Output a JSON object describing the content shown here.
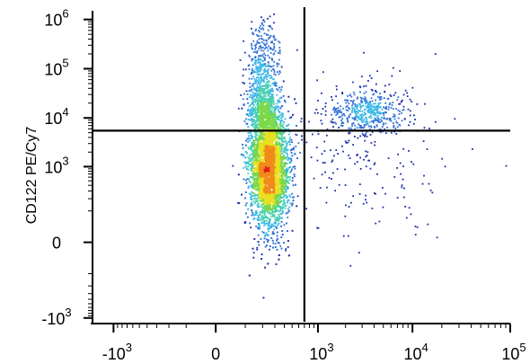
{
  "chart_data": {
    "type": "scatter",
    "subtype": "flow-cytometry-density",
    "title": "",
    "xlabel": "",
    "ylabel": "CD122 PE/Cy7",
    "x_axis": {
      "scale": "biexponential",
      "tick_labels": [
        {
          "value": -1000,
          "base": "-10",
          "exp": "3"
        },
        {
          "value": 0,
          "base": "0",
          "exp": ""
        },
        {
          "value": 1000,
          "base": "10",
          "exp": "3"
        },
        {
          "value": 10000,
          "base": "10",
          "exp": "4"
        },
        {
          "value": 100000,
          "base": "10",
          "exp": "5"
        }
      ],
      "range": [
        -1700,
        100000
      ]
    },
    "y_axis": {
      "scale": "biexponential",
      "tick_labels": [
        {
          "value": -1000,
          "base": "-10",
          "exp": "3"
        },
        {
          "value": 0,
          "base": "0",
          "exp": ""
        },
        {
          "value": 1000,
          "base": "10",
          "exp": "3"
        },
        {
          "value": 10000,
          "base": "10",
          "exp": "4"
        },
        {
          "value": 100000,
          "base": "10",
          "exp": "5"
        },
        {
          "value": 1000000,
          "base": "10",
          "exp": "6"
        }
      ],
      "range": [
        -1200,
        1500000
      ]
    },
    "quadrant_gates": {
      "x": 700,
      "y": 5500
    },
    "populations": [
      {
        "name": "main",
        "x_center": 250,
        "y_center": 1000,
        "relative_count": 0.78
      },
      {
        "name": "upper-left",
        "x_center": 200,
        "y_center": 8000,
        "relative_count": 0.12
      },
      {
        "name": "upper-right",
        "x_center": 3500,
        "y_center": 13000,
        "relative_count": 0.07
      },
      {
        "name": "lower-right",
        "x_center": 3000,
        "y_center": 2000,
        "relative_count": 0.03
      }
    ],
    "density_colormap": [
      "#1b2ea8",
      "#2f6fd6",
      "#38b7e6",
      "#47d0b0",
      "#7cd84a",
      "#e8e020",
      "#f08a1a",
      "#e01818"
    ],
    "grid": false,
    "legend": "none"
  }
}
